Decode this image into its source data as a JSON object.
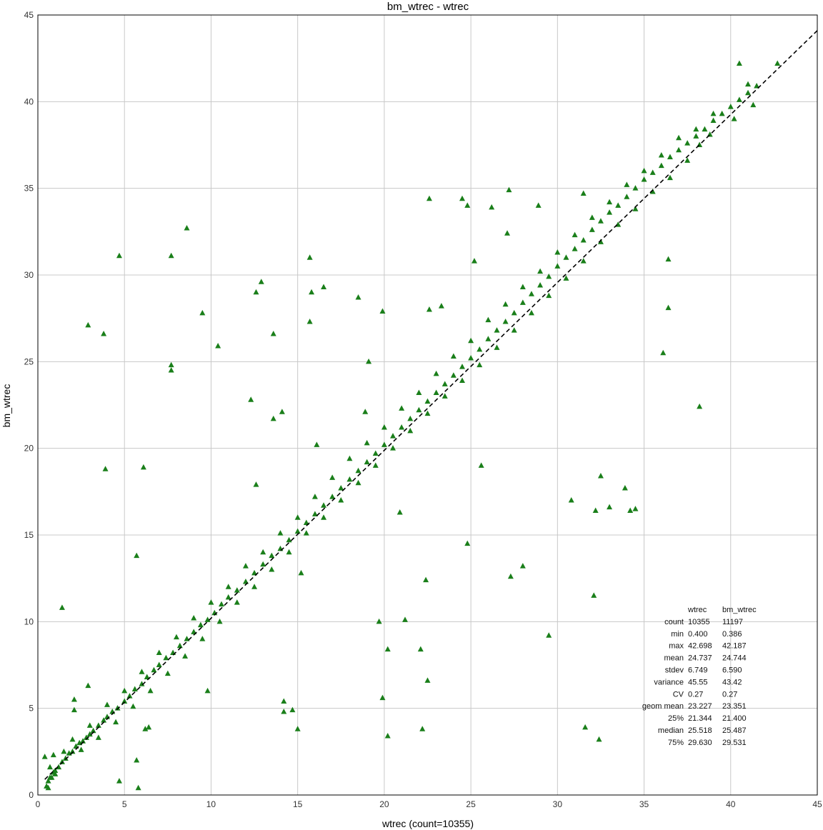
{
  "chart_data": {
    "type": "scatter",
    "title": "bm_wtrec - wtrec",
    "xlabel": "wtrec (count=10355)",
    "ylabel": "bm_wtrec",
    "xlim": [
      0,
      45
    ],
    "ylim": [
      0,
      45
    ],
    "xticks": [
      0,
      5,
      10,
      15,
      20,
      25,
      30,
      35,
      40,
      45
    ],
    "yticks": [
      0,
      5,
      10,
      15,
      20,
      25,
      30,
      35,
      40,
      45
    ],
    "grid": true,
    "marker": "triangle",
    "marker_color": "#1a7f1a",
    "fit_line": {
      "style": "dashed",
      "color": "#000000",
      "x": [
        0.4,
        45
      ],
      "y": [
        0.9,
        44.1
      ]
    },
    "series": [
      {
        "points": [
          [
            0.5,
            0.5
          ],
          [
            0.6,
            0.8
          ],
          [
            0.7,
            1.0
          ],
          [
            0.8,
            1.0
          ],
          [
            0.9,
            1.3
          ],
          [
            1.0,
            1.4
          ],
          [
            1.2,
            1.6
          ],
          [
            1.4,
            1.9
          ],
          [
            1.6,
            2.1
          ],
          [
            1.8,
            2.4
          ],
          [
            2.0,
            2.5
          ],
          [
            2.2,
            2.8
          ],
          [
            2.4,
            3.0
          ],
          [
            2.6,
            3.1
          ],
          [
            2.8,
            3.3
          ],
          [
            3.0,
            3.5
          ],
          [
            3.2,
            3.7
          ],
          [
            3.5,
            4.0
          ],
          [
            3.8,
            4.3
          ],
          [
            4.0,
            4.5
          ],
          [
            4.3,
            4.8
          ],
          [
            4.6,
            5.0
          ],
          [
            5.0,
            5.4
          ],
          [
            5.3,
            5.7
          ],
          [
            5.6,
            6.1
          ],
          [
            6.0,
            6.4
          ],
          [
            6.3,
            6.8
          ],
          [
            6.7,
            7.2
          ],
          [
            7.0,
            7.5
          ],
          [
            7.4,
            7.9
          ],
          [
            7.8,
            8.2
          ],
          [
            8.2,
            8.6
          ],
          [
            8.6,
            9.0
          ],
          [
            9.0,
            9.4
          ],
          [
            9.4,
            9.8
          ],
          [
            9.8,
            10.1
          ],
          [
            10.2,
            10.5
          ],
          [
            10.6,
            11.0
          ],
          [
            11.0,
            11.4
          ],
          [
            11.5,
            11.8
          ],
          [
            12.0,
            12.3
          ],
          [
            12.5,
            12.8
          ],
          [
            13.0,
            13.3
          ],
          [
            13.5,
            13.8
          ],
          [
            14.0,
            14.2
          ],
          [
            14.5,
            14.7
          ],
          [
            15.0,
            15.2
          ],
          [
            15.5,
            15.7
          ],
          [
            16.0,
            16.2
          ],
          [
            16.5,
            16.7
          ],
          [
            17.0,
            17.2
          ],
          [
            17.5,
            17.7
          ],
          [
            18.0,
            18.2
          ],
          [
            18.5,
            18.7
          ],
          [
            19.0,
            19.2
          ],
          [
            19.5,
            19.7
          ],
          [
            20.0,
            20.2
          ],
          [
            20.5,
            20.7
          ],
          [
            21.0,
            21.2
          ],
          [
            21.5,
            21.7
          ],
          [
            22.0,
            22.2
          ],
          [
            22.5,
            22.7
          ],
          [
            23.0,
            23.2
          ],
          [
            23.5,
            23.7
          ],
          [
            24.0,
            24.2
          ],
          [
            24.5,
            24.7
          ],
          [
            25.0,
            25.2
          ],
          [
            25.5,
            25.7
          ],
          [
            26.0,
            26.3
          ],
          [
            26.5,
            26.8
          ],
          [
            27.0,
            27.3
          ],
          [
            27.5,
            27.8
          ],
          [
            28.0,
            28.4
          ],
          [
            28.5,
            28.9
          ],
          [
            29.0,
            29.4
          ],
          [
            29.5,
            29.9
          ],
          [
            30.0,
            30.5
          ],
          [
            30.5,
            31.0
          ],
          [
            31.0,
            31.5
          ],
          [
            31.5,
            32.0
          ],
          [
            32.0,
            32.6
          ],
          [
            32.5,
            33.1
          ],
          [
            33.0,
            33.6
          ],
          [
            33.5,
            34.0
          ],
          [
            34.0,
            34.5
          ],
          [
            34.5,
            35.0
          ],
          [
            35.0,
            35.5
          ],
          [
            35.5,
            35.9
          ],
          [
            36.0,
            36.3
          ],
          [
            36.5,
            36.8
          ],
          [
            37.0,
            37.2
          ],
          [
            37.5,
            37.6
          ],
          [
            38.0,
            38.0
          ],
          [
            38.5,
            38.4
          ],
          [
            39.0,
            38.9
          ],
          [
            39.5,
            39.3
          ],
          [
            40.0,
            39.7
          ],
          [
            40.5,
            40.1
          ],
          [
            41.0,
            40.5
          ],
          [
            41.5,
            40.9
          ],
          [
            0.7,
            1.6
          ],
          [
            1.0,
            1.2
          ],
          [
            1.5,
            2.5
          ],
          [
            2.0,
            3.2
          ],
          [
            2.5,
            2.6
          ],
          [
            3.0,
            4.0
          ],
          [
            3.5,
            3.3
          ],
          [
            4.0,
            5.2
          ],
          [
            4.5,
            4.2
          ],
          [
            5.0,
            6.0
          ],
          [
            5.5,
            5.1
          ],
          [
            6.0,
            7.1
          ],
          [
            6.5,
            6.0
          ],
          [
            7.0,
            8.2
          ],
          [
            7.5,
            7.0
          ],
          [
            8.0,
            9.1
          ],
          [
            8.5,
            8.0
          ],
          [
            9.0,
            10.2
          ],
          [
            9.5,
            9.0
          ],
          [
            10.0,
            11.1
          ],
          [
            10.5,
            10.0
          ],
          [
            11.0,
            12.0
          ],
          [
            11.5,
            11.1
          ],
          [
            12.0,
            13.2
          ],
          [
            12.5,
            12.0
          ],
          [
            13.0,
            14.0
          ],
          [
            13.5,
            13.0
          ],
          [
            14.0,
            15.1
          ],
          [
            14.5,
            14.0
          ],
          [
            15.0,
            16.0
          ],
          [
            15.5,
            15.1
          ],
          [
            16.0,
            17.2
          ],
          [
            16.5,
            16.0
          ],
          [
            17.0,
            18.3
          ],
          [
            17.5,
            17.0
          ],
          [
            18.0,
            19.4
          ],
          [
            18.5,
            18.0
          ],
          [
            19.0,
            20.3
          ],
          [
            19.5,
            19.0
          ],
          [
            20.0,
            21.2
          ],
          [
            20.5,
            20.0
          ],
          [
            21.0,
            22.3
          ],
          [
            21.5,
            21.0
          ],
          [
            22.0,
            23.2
          ],
          [
            22.5,
            22.0
          ],
          [
            23.0,
            24.3
          ],
          [
            23.5,
            23.0
          ],
          [
            24.0,
            25.3
          ],
          [
            24.5,
            23.9
          ],
          [
            25.0,
            26.2
          ],
          [
            25.5,
            24.8
          ],
          [
            26.0,
            27.4
          ],
          [
            26.5,
            25.8
          ],
          [
            27.0,
            28.3
          ],
          [
            27.5,
            26.8
          ],
          [
            28.0,
            29.3
          ],
          [
            28.5,
            27.8
          ],
          [
            29.0,
            30.2
          ],
          [
            29.5,
            28.8
          ],
          [
            30.0,
            31.3
          ],
          [
            30.5,
            29.8
          ],
          [
            31.0,
            32.3
          ],
          [
            31.5,
            30.8
          ],
          [
            32.0,
            33.3
          ],
          [
            32.5,
            31.9
          ],
          [
            33.0,
            34.2
          ],
          [
            33.5,
            32.9
          ],
          [
            34.0,
            35.2
          ],
          [
            34.5,
            33.8
          ],
          [
            35.0,
            36.0
          ],
          [
            35.5,
            34.8
          ],
          [
            36.0,
            36.9
          ],
          [
            36.5,
            35.6
          ],
          [
            37.0,
            37.9
          ],
          [
            37.5,
            36.6
          ],
          [
            38.0,
            38.4
          ],
          [
            38.2,
            37.5
          ],
          [
            39.0,
            39.3
          ],
          [
            40.5,
            42.2
          ],
          [
            41.0,
            41.0
          ],
          [
            41.3,
            39.8
          ],
          [
            42.7,
            42.2
          ],
          [
            40.2,
            39.0
          ],
          [
            38.8,
            38.1
          ],
          [
            0.4,
            2.2
          ],
          [
            0.6,
            0.4
          ],
          [
            0.9,
            2.3
          ],
          [
            1.4,
            10.8
          ],
          [
            2.1,
            5.5
          ],
          [
            2.1,
            4.9
          ],
          [
            2.9,
            6.3
          ],
          [
            2.9,
            27.1
          ],
          [
            3.8,
            26.6
          ],
          [
            3.9,
            18.8
          ],
          [
            4.7,
            31.1
          ],
          [
            4.7,
            0.8
          ],
          [
            5.7,
            13.8
          ],
          [
            5.7,
            2.0
          ],
          [
            5.8,
            0.4
          ],
          [
            6.1,
            18.9
          ],
          [
            6.2,
            3.8
          ],
          [
            6.4,
            3.9
          ],
          [
            7.7,
            31.1
          ],
          [
            7.7,
            24.8
          ],
          [
            7.7,
            24.5
          ],
          [
            8.6,
            32.7
          ],
          [
            9.5,
            27.8
          ],
          [
            9.8,
            6.0
          ],
          [
            10.4,
            25.9
          ],
          [
            12.3,
            22.8
          ],
          [
            12.6,
            17.9
          ],
          [
            12.6,
            29.0
          ],
          [
            12.9,
            29.6
          ],
          [
            13.6,
            26.6
          ],
          [
            13.6,
            21.7
          ],
          [
            14.1,
            22.1
          ],
          [
            14.2,
            5.4
          ],
          [
            14.2,
            4.8
          ],
          [
            14.7,
            4.9
          ],
          [
            15.0,
            3.8
          ],
          [
            15.2,
            12.8
          ],
          [
            15.7,
            31.0
          ],
          [
            15.7,
            27.3
          ],
          [
            15.8,
            29.0
          ],
          [
            16.5,
            29.3
          ],
          [
            16.1,
            20.2
          ],
          [
            18.5,
            28.7
          ],
          [
            18.9,
            22.1
          ],
          [
            19.1,
            25.0
          ],
          [
            19.7,
            10.0
          ],
          [
            19.9,
            27.9
          ],
          [
            19.9,
            5.6
          ],
          [
            20.2,
            8.4
          ],
          [
            20.2,
            3.4
          ],
          [
            20.9,
            16.3
          ],
          [
            21.2,
            10.1
          ],
          [
            22.1,
            8.4
          ],
          [
            22.2,
            3.8
          ],
          [
            22.4,
            12.4
          ],
          [
            22.5,
            6.6
          ],
          [
            22.6,
            34.4
          ],
          [
            22.6,
            28.0
          ],
          [
            23.3,
            28.2
          ],
          [
            24.5,
            34.4
          ],
          [
            24.8,
            14.5
          ],
          [
            24.8,
            34.0
          ],
          [
            25.2,
            30.8
          ],
          [
            25.6,
            19.0
          ],
          [
            26.2,
            33.9
          ],
          [
            27.1,
            32.4
          ],
          [
            27.2,
            34.9
          ],
          [
            27.3,
            12.6
          ],
          [
            28.0,
            13.2
          ],
          [
            28.9,
            34.0
          ],
          [
            29.5,
            9.2
          ],
          [
            30.8,
            17.0
          ],
          [
            31.5,
            34.7
          ],
          [
            31.6,
            3.9
          ],
          [
            32.1,
            11.5
          ],
          [
            32.2,
            16.4
          ],
          [
            32.4,
            3.2
          ],
          [
            32.5,
            18.4
          ],
          [
            33.0,
            16.6
          ],
          [
            33.9,
            17.7
          ],
          [
            34.2,
            16.4
          ],
          [
            34.5,
            16.5
          ],
          [
            36.4,
            30.9
          ],
          [
            36.4,
            28.1
          ],
          [
            36.1,
            25.5
          ],
          [
            38.2,
            22.4
          ]
        ]
      }
    ],
    "stats_table": {
      "headers": [
        "",
        "wtrec",
        "bm_wtrec"
      ],
      "rows": [
        [
          "count",
          "10355",
          "11197"
        ],
        [
          "min",
          "0.400",
          "0.386"
        ],
        [
          "max",
          "42.698",
          "42.187"
        ],
        [
          "mean",
          "24.737",
          "24.744"
        ],
        [
          "stdev",
          "6.749",
          "6.590"
        ],
        [
          "variance",
          "45.55",
          "43.42"
        ],
        [
          "CV",
          "0.27",
          "0.27"
        ],
        [
          "geom mean",
          "23.227",
          "23.351"
        ],
        [
          "25%",
          "21.344",
          "21.400"
        ],
        [
          "median",
          "25.518",
          "25.487"
        ],
        [
          "75%",
          "29.630",
          "29.531"
        ]
      ]
    }
  }
}
